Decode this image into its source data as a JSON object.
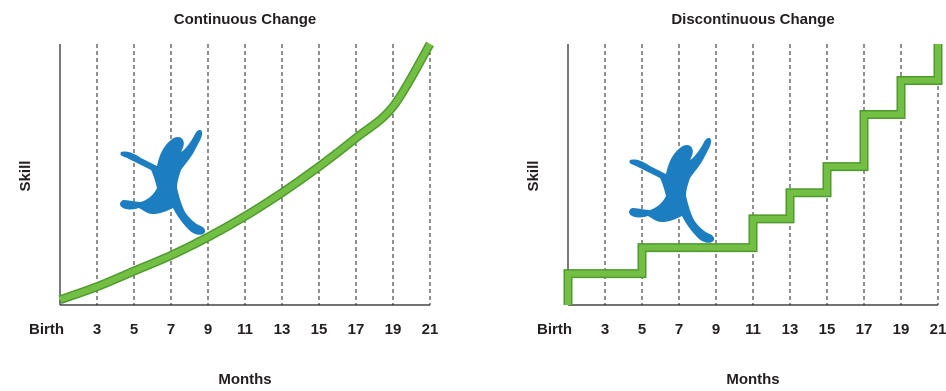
{
  "chart_data": [
    {
      "type": "line",
      "title": "Continuous Change",
      "xlabel": "Months",
      "ylabel": "Skill",
      "tick_labels": [
        "Birth",
        "3",
        "5",
        "7",
        "9",
        "11",
        "13",
        "15",
        "17",
        "19",
        "21"
      ],
      "x": [
        1,
        3,
        5,
        7,
        9,
        11,
        13,
        15,
        17,
        19,
        21
      ],
      "xlim": [
        1,
        21
      ],
      "ylim": [
        0,
        100
      ],
      "grid": "vertical-dashed",
      "series": [
        {
          "x": [
            1,
            3,
            5,
            7,
            9,
            11,
            13,
            15,
            17,
            19,
            21
          ],
          "values": [
            2,
            7,
            13,
            19,
            26,
            34,
            43,
            53,
            64,
            76,
            100
          ]
        }
      ],
      "line_color": "#72bf44",
      "figure_color": "#1c7dc1"
    },
    {
      "type": "line",
      "title": "Discontinuous Change",
      "xlabel": "Months",
      "ylabel": "Skill",
      "tick_labels": [
        "Birth",
        "3",
        "5",
        "7",
        "9",
        "11",
        "13",
        "15",
        "17",
        "19",
        "21"
      ],
      "x": [
        1,
        3,
        5,
        7,
        9,
        11,
        13,
        15,
        17,
        19,
        21
      ],
      "xlim": [
        1,
        21
      ],
      "ylim": [
        0,
        100
      ],
      "grid": "vertical-dashed",
      "series": [
        {
          "step": true,
          "x": [
            1,
            5,
            11,
            13,
            15,
            17,
            19,
            21
          ],
          "values": [
            12,
            22,
            33,
            43,
            53,
            73,
            86,
            100
          ]
        }
      ],
      "line_color": "#72bf44",
      "figure_color": "#1c7dc1"
    }
  ]
}
